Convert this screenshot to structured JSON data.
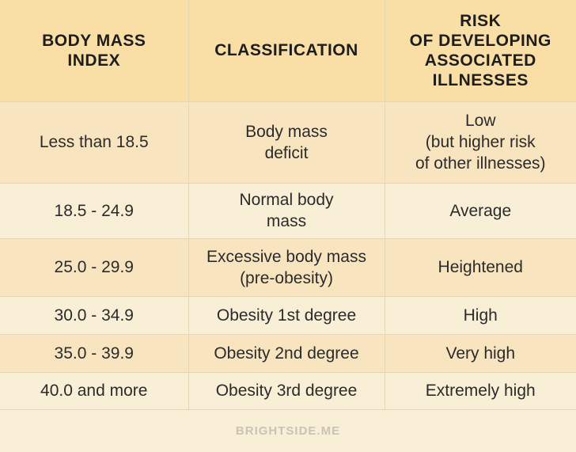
{
  "table": {
    "headers": [
      "BODY MASS\nINDEX",
      "CLASSIFICATION",
      "RISK\nOF DEVELOPING\nASSOCIATED\nILLNESSES"
    ],
    "rows": [
      [
        "Less than 18.5",
        "Body mass\ndeficit",
        "Low\n(but higher risk\nof other illnesses)"
      ],
      [
        "18.5 - 24.9",
        "Normal body\nmass",
        "Average"
      ],
      [
        "25.0 - 29.9",
        "Excessive body mass\n(pre-obesity)",
        "Heightened"
      ],
      [
        "30.0 - 34.9",
        "Obesity 1st degree",
        "High"
      ],
      [
        "35.0 - 39.9",
        "Obesity 2nd degree",
        "Very high"
      ],
      [
        "40.0 and more",
        "Obesity 3rd degree",
        "Extremely high"
      ]
    ]
  },
  "footer": {
    "brand": "BRIGHTSIDE.ME"
  },
  "colors": {
    "header_bg": "#f9dfa5",
    "row_dark": "#f8e5c0",
    "row_light": "#f9efd6",
    "border": "#e6d7b4",
    "brand_text": "#c9c3b6"
  }
}
